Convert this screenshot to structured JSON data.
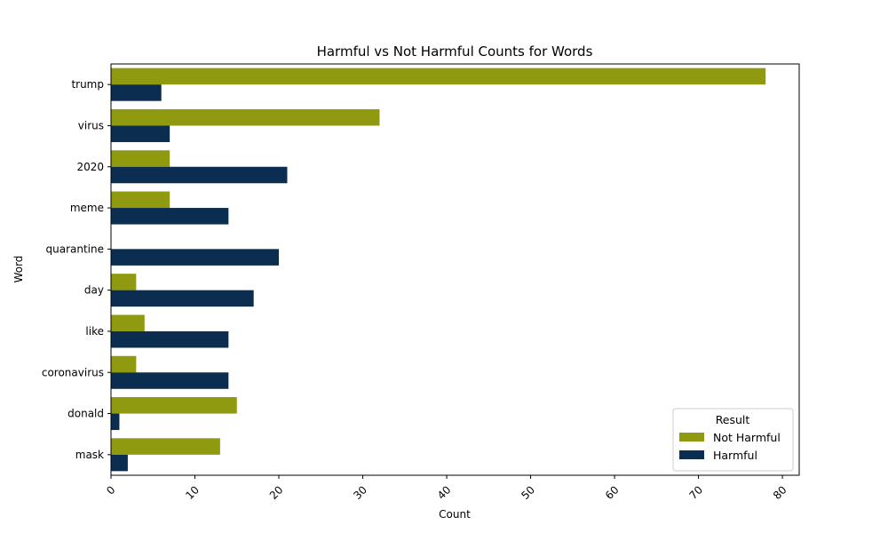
{
  "chart_data": {
    "type": "bar",
    "orientation": "horizontal",
    "title": "Harmful vs Not Harmful Counts for Words",
    "xlabel": "Count",
    "ylabel": "Word",
    "xlim": [
      0,
      82
    ],
    "xticks": [
      0,
      10,
      20,
      30,
      40,
      50,
      60,
      70,
      80
    ],
    "categories": [
      "trump",
      "virus",
      "2020",
      "meme",
      "quarantine",
      "day",
      "like",
      "coronavirus",
      "donald",
      "mask"
    ],
    "series": [
      {
        "name": "Not Harmful",
        "color": "#8f9a10",
        "values": [
          78,
          32,
          7,
          7,
          0,
          3,
          4,
          3,
          15,
          13
        ]
      },
      {
        "name": "Harmful",
        "color": "#0b2d4f",
        "values": [
          6,
          7,
          21,
          14,
          20,
          17,
          14,
          14,
          1,
          2
        ]
      }
    ],
    "legend": {
      "title": "Result",
      "placement": "lower-right"
    },
    "grid": false
  }
}
